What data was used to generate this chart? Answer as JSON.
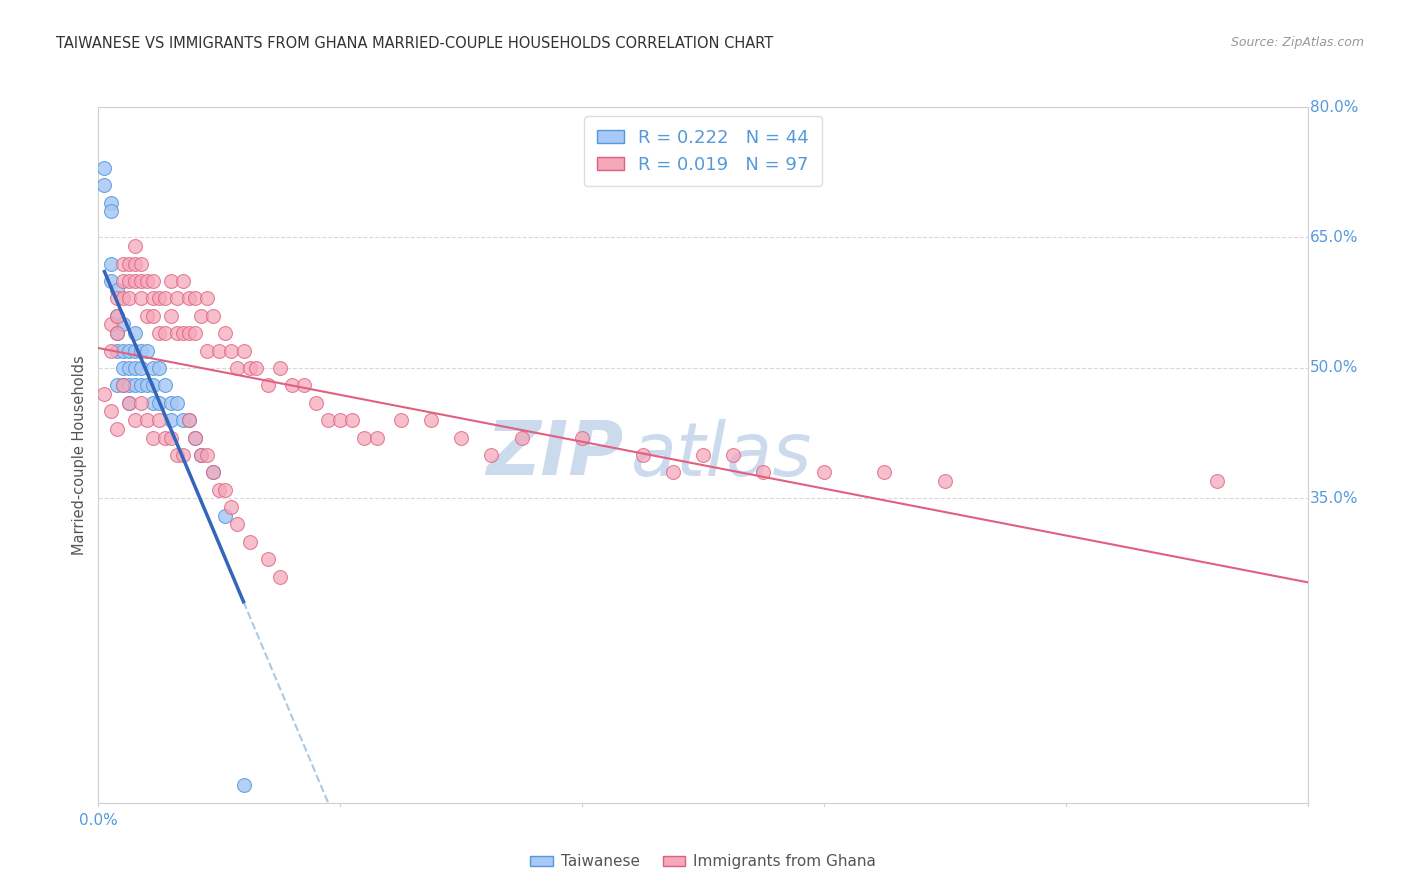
{
  "title": "TAIWANESE VS IMMIGRANTS FROM GHANA MARRIED-COUPLE HOUSEHOLDS CORRELATION CHART",
  "source": "Source: ZipAtlas.com",
  "ylabel": "Married-couple Households",
  "xlim": [
    0.0,
    0.2
  ],
  "ylim": [
    0.0,
    0.8
  ],
  "ytick_positions": [
    0.35,
    0.5,
    0.65,
    0.8
  ],
  "ytick_labels": [
    "35.0%",
    "50.0%",
    "65.0%",
    "80.0%"
  ],
  "color_taiwanese": "#a8c8f5",
  "color_ghana": "#f5a8ba",
  "color_edge_taiwanese": "#5599dd",
  "color_edge_ghana": "#dd6080",
  "color_line_taiwanese": "#3366bb",
  "color_line_ghana": "#e06080",
  "color_dash": "#99bbdd",
  "watermark_zip": "ZIP",
  "watermark_atlas": "atlas",
  "watermark_color": "#ccdaee",
  "axis_tick_color": "#5599dd",
  "grid_color": "#d8d8d8",
  "spine_color": "#d0d0d0",
  "title_color": "#333333",
  "source_color": "#999999",
  "ylabel_color": "#555555",
  "legend_edge_color": "#dddddd",
  "bottom_label_color": "#555555",
  "taiwanese_x": [
    0.001,
    0.001,
    0.002,
    0.002,
    0.002,
    0.002,
    0.003,
    0.003,
    0.003,
    0.003,
    0.003,
    0.004,
    0.004,
    0.004,
    0.004,
    0.005,
    0.005,
    0.005,
    0.005,
    0.006,
    0.006,
    0.006,
    0.006,
    0.007,
    0.007,
    0.007,
    0.008,
    0.008,
    0.009,
    0.009,
    0.009,
    0.01,
    0.01,
    0.011,
    0.012,
    0.012,
    0.013,
    0.014,
    0.015,
    0.016,
    0.017,
    0.019,
    0.021,
    0.024
  ],
  "taiwanese_y": [
    0.73,
    0.71,
    0.69,
    0.68,
    0.62,
    0.6,
    0.59,
    0.56,
    0.54,
    0.52,
    0.48,
    0.55,
    0.52,
    0.5,
    0.48,
    0.52,
    0.5,
    0.48,
    0.46,
    0.54,
    0.52,
    0.5,
    0.48,
    0.52,
    0.5,
    0.48,
    0.52,
    0.48,
    0.5,
    0.48,
    0.46,
    0.5,
    0.46,
    0.48,
    0.46,
    0.44,
    0.46,
    0.44,
    0.44,
    0.42,
    0.4,
    0.38,
    0.33,
    0.02
  ],
  "ghana_x": [
    0.001,
    0.002,
    0.002,
    0.003,
    0.003,
    0.003,
    0.004,
    0.004,
    0.004,
    0.005,
    0.005,
    0.005,
    0.006,
    0.006,
    0.006,
    0.007,
    0.007,
    0.007,
    0.008,
    0.008,
    0.009,
    0.009,
    0.009,
    0.01,
    0.01,
    0.011,
    0.011,
    0.012,
    0.012,
    0.013,
    0.013,
    0.014,
    0.014,
    0.015,
    0.015,
    0.016,
    0.016,
    0.017,
    0.018,
    0.018,
    0.019,
    0.02,
    0.021,
    0.022,
    0.023,
    0.024,
    0.025,
    0.026,
    0.028,
    0.03,
    0.032,
    0.034,
    0.036,
    0.038,
    0.04,
    0.042,
    0.044,
    0.046,
    0.05,
    0.055,
    0.06,
    0.065,
    0.07,
    0.08,
    0.09,
    0.095,
    0.1,
    0.105,
    0.11,
    0.12,
    0.13,
    0.14,
    0.002,
    0.003,
    0.004,
    0.005,
    0.006,
    0.007,
    0.008,
    0.009,
    0.01,
    0.011,
    0.012,
    0.013,
    0.014,
    0.015,
    0.016,
    0.017,
    0.018,
    0.019,
    0.02,
    0.021,
    0.022,
    0.023,
    0.025,
    0.028,
    0.03,
    0.185
  ],
  "ghana_y": [
    0.47,
    0.55,
    0.52,
    0.58,
    0.56,
    0.54,
    0.62,
    0.6,
    0.58,
    0.62,
    0.6,
    0.58,
    0.64,
    0.62,
    0.6,
    0.62,
    0.6,
    0.58,
    0.6,
    0.56,
    0.6,
    0.58,
    0.56,
    0.58,
    0.54,
    0.58,
    0.54,
    0.6,
    0.56,
    0.58,
    0.54,
    0.6,
    0.54,
    0.58,
    0.54,
    0.58,
    0.54,
    0.56,
    0.58,
    0.52,
    0.56,
    0.52,
    0.54,
    0.52,
    0.5,
    0.52,
    0.5,
    0.5,
    0.48,
    0.5,
    0.48,
    0.48,
    0.46,
    0.44,
    0.44,
    0.44,
    0.42,
    0.42,
    0.44,
    0.44,
    0.42,
    0.4,
    0.42,
    0.42,
    0.4,
    0.38,
    0.4,
    0.4,
    0.38,
    0.38,
    0.38,
    0.37,
    0.45,
    0.43,
    0.48,
    0.46,
    0.44,
    0.46,
    0.44,
    0.42,
    0.44,
    0.42,
    0.42,
    0.4,
    0.4,
    0.44,
    0.42,
    0.4,
    0.4,
    0.38,
    0.36,
    0.36,
    0.34,
    0.32,
    0.3,
    0.28,
    0.26,
    0.37
  ],
  "background_color": "#ffffff"
}
